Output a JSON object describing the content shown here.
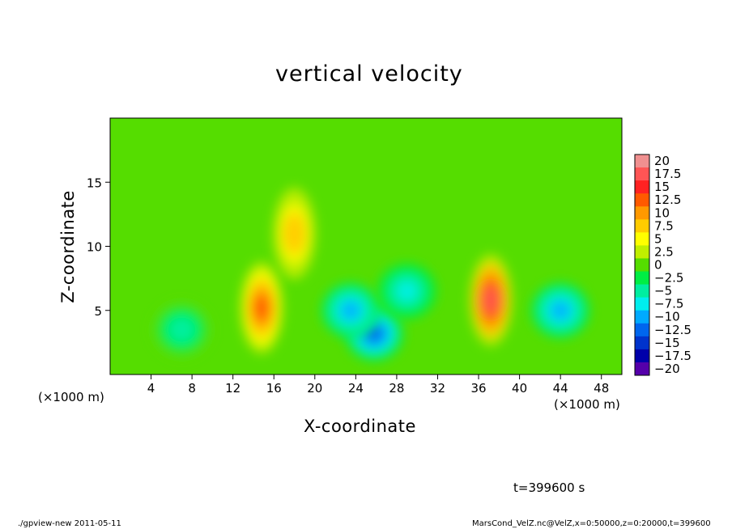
{
  "chart_data": {
    "type": "heatmap",
    "title": "vertical velocity",
    "xlabel": "X-coordinate",
    "ylabel": "Z-coordinate",
    "x_unit_label": "(×1000 m)",
    "y_unit_label": "(×1000 m)",
    "xlim": [
      0,
      50
    ],
    "ylim": [
      0,
      20
    ],
    "x_ticks": [
      "4",
      "8",
      "12",
      "16",
      "20",
      "24",
      "28",
      "32",
      "36",
      "40",
      "44",
      "48"
    ],
    "y_ticks": [
      "5",
      "10",
      "15"
    ],
    "colorbar": {
      "labels": [
        "20",
        "17.5",
        "15",
        "12.5",
        "10",
        "7.5",
        "5",
        "2.5",
        "0",
        "−2.5",
        "−5",
        "−7.5",
        "−10",
        "−12.5",
        "−15",
        "−17.5",
        "−20"
      ],
      "min": -20,
      "max": 20,
      "colors": [
        "#f09090",
        "#ff5555",
        "#ff2222",
        "#ff5a00",
        "#ff9900",
        "#ffcc00",
        "#ffff00",
        "#c0ef00",
        "#55dd00",
        "#00ee44",
        "#00eea0",
        "#00eeee",
        "#00aaff",
        "#0066ee",
        "#0033cc",
        "#0000aa",
        "#5500aa"
      ]
    },
    "features": [
      {
        "x": 14.8,
        "z": 5.2,
        "value": 12.5
      },
      {
        "x": 18.0,
        "z": 11.0,
        "value": 8.0
      },
      {
        "x": 37.2,
        "z": 5.8,
        "value": 15.5
      },
      {
        "x": 25.8,
        "z": 3.2,
        "value": -11.0
      },
      {
        "x": 23.5,
        "z": 5.0,
        "value": -9.5
      },
      {
        "x": 29.0,
        "z": 6.5,
        "value": -7.0
      },
      {
        "x": 44.0,
        "z": 5.0,
        "value": -9.0
      },
      {
        "x": 7.0,
        "z": 3.5,
        "value": -5.0
      }
    ],
    "time_label": "t=399600 s"
  },
  "footer": {
    "left": "./gpview-new  2011-05-11",
    "right": "MarsCond_VelZ.nc@VelZ,x=0:50000,z=0:20000,t=399600"
  }
}
